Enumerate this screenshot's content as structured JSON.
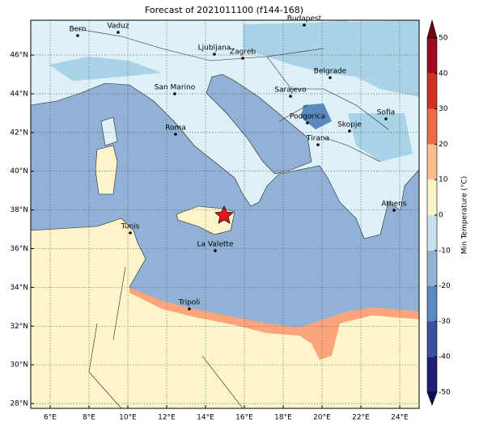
{
  "title": "Forecast of 2021011100 (f144-168)",
  "map": {
    "xlim": [
      5,
      25
    ],
    "ylim": [
      27.75,
      47.8
    ],
    "xticks": [
      {
        "value": 6,
        "label": "6°E"
      },
      {
        "value": 8,
        "label": "8°E"
      },
      {
        "value": 10,
        "label": "10°E"
      },
      {
        "value": 12,
        "label": "12°E"
      },
      {
        "value": 14,
        "label": "14°E"
      },
      {
        "value": 16,
        "label": "16°E"
      },
      {
        "value": 18,
        "label": "18°E"
      },
      {
        "value": 20,
        "label": "20°E"
      },
      {
        "value": 22,
        "label": "22°E"
      },
      {
        "value": 24,
        "label": "24°E"
      }
    ],
    "yticks": [
      {
        "value": 28,
        "label": "28°N"
      },
      {
        "value": 30,
        "label": "30°N"
      },
      {
        "value": 32,
        "label": "32°N"
      },
      {
        "value": 34,
        "label": "34°N"
      },
      {
        "value": 36,
        "label": "36°N"
      },
      {
        "value": 38,
        "label": "38°N"
      },
      {
        "value": 40,
        "label": "40°N"
      },
      {
        "value": 42,
        "label": "42°N"
      },
      {
        "value": 44,
        "label": "44°N"
      },
      {
        "value": 46,
        "label": "46°N"
      }
    ],
    "grid": true,
    "cities": [
      "Bern",
      "Vaduz",
      "Budapest",
      "Ljubljana",
      "Zagreb",
      "Belgrade",
      "San Marino",
      "Sarajevo",
      "Sofia",
      "Podgorica",
      "Skopje",
      "Roma",
      "Tirana",
      "Athens",
      "Tunis",
      "La Valette",
      "Tripoli"
    ]
  },
  "colorbar": {
    "label": "Min Temperature (°C)",
    "ticks": [
      -50,
      -40,
      -30,
      -20,
      -10,
      0,
      10,
      20,
      30,
      40,
      50
    ],
    "colors": [
      "#1f1f7a",
      "#3b4fa0",
      "#5b8ac0",
      "#92b3d8",
      "#c6e3ef",
      "#fdf5c9",
      "#fdbd8c",
      "#f06a48",
      "#d0301f",
      "#a00a1e"
    ],
    "under_color": "#0d0d55",
    "over_color": "#700012"
  }
}
